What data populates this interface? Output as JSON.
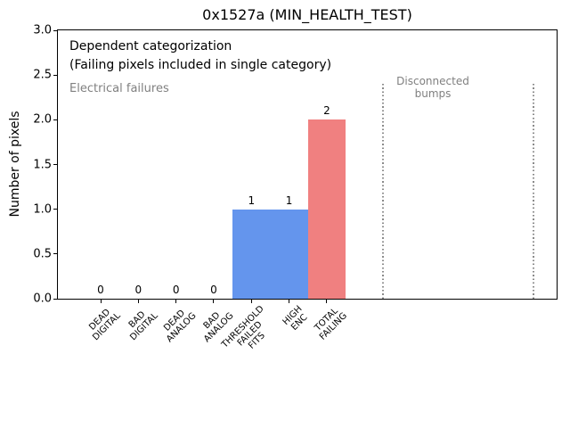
{
  "chart_data": {
    "type": "bar",
    "title": "0x1527a (MIN_HEALTH_TEST)",
    "xlabel": "",
    "ylabel": "Number of pixels",
    "ylim": [
      0.0,
      3.0
    ],
    "ytick_labels": [
      "0.0",
      "0.5",
      "1.0",
      "1.5",
      "2.0",
      "2.5",
      "3.0"
    ],
    "ytick_values": [
      0.0,
      0.5,
      1.0,
      1.5,
      2.0,
      2.5,
      3.0
    ],
    "xlim_category_units": [
      -1.134,
      12.096
    ],
    "grid": false,
    "legend": null,
    "categories": [
      "DEAD\nDIGITAL",
      "BAD\nDIGITAL",
      "DEAD\nANALOG",
      "BAD\nANALOG",
      "THRESHOLD\nFAILED\nFITS",
      "HIGH\nENC",
      "TOTAL\nFAILING"
    ],
    "values": [
      0,
      0,
      0,
      0,
      1,
      1,
      2
    ],
    "bar_value_labels": [
      "0",
      "0",
      "0",
      "0",
      "1",
      "1",
      "2"
    ],
    "bar_colors": [
      "#6495ed",
      "#6495ed",
      "#6495ed",
      "#6495ed",
      "#6495ed",
      "#6495ed",
      "#f08080"
    ],
    "bar_width_category_units": 1.0,
    "vlines": {
      "positions_category_units": [
        7.49,
        11.47
      ],
      "ymin": 0.0,
      "ymax": 2.4,
      "style": "dotted",
      "color": "#8a8a8a"
    },
    "annotations": {
      "line1": "Dependent categorization",
      "line2": "(Failing pixels included in single category)",
      "electrical": "Electrical failures",
      "disconnected_line1": "Disconnected",
      "disconnected_line2": "bumps"
    },
    "colors": {
      "bar_blue": "#6495ed",
      "bar_red": "#f08080",
      "gray_text": "#808080",
      "axis": "#000000",
      "background": "#ffffff"
    }
  }
}
